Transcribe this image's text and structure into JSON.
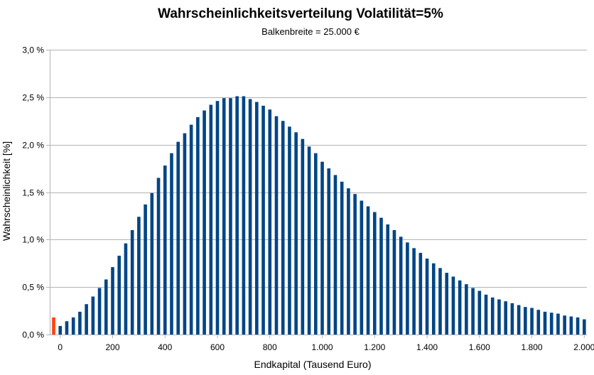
{
  "chart_data": {
    "type": "bar",
    "title": "Wahrscheinlichkeitsverteilung Volatilität=5%",
    "subtitle": "Balkenbreite = 25.000 €",
    "xlabel": "Endkapital (Tausend Euro)",
    "ylabel": "Wahrscheinlichkeit [%]",
    "x_unit": "Tausend Euro",
    "y_unit": "%",
    "bin_width": 25,
    "xlim": [
      -40,
      2010
    ],
    "ylim": [
      0,
      3.0
    ],
    "x_ticks": [
      0,
      200,
      400,
      600,
      800,
      1000,
      1200,
      1400,
      1600,
      1800,
      2000
    ],
    "x_tick_labels": [
      "0",
      "200",
      "400",
      "600",
      "800",
      "1.000",
      "1.200",
      "1.400",
      "1.600",
      "1.800",
      "2.000"
    ],
    "y_ticks": [
      0,
      0.5,
      1.0,
      1.5,
      2.0,
      2.5,
      3.0
    ],
    "y_tick_labels": [
      "0,0 %",
      "0,5 %",
      "1,0 %",
      "1,5 %",
      "2,0 %",
      "2,5 %",
      "3,0 %"
    ],
    "grid": true,
    "colors": {
      "main": "#004586",
      "highlight": "#ff420e"
    },
    "highlight_bar": {
      "x": -25,
      "value": 0.18,
      "note_color": "#ff420e"
    },
    "x": [
      -25,
      0,
      25,
      50,
      75,
      100,
      125,
      150,
      175,
      200,
      225,
      250,
      275,
      300,
      325,
      350,
      375,
      400,
      425,
      450,
      475,
      500,
      525,
      550,
      575,
      600,
      625,
      650,
      675,
      700,
      725,
      750,
      775,
      800,
      825,
      850,
      875,
      900,
      925,
      950,
      975,
      1000,
      1025,
      1050,
      1075,
      1100,
      1125,
      1150,
      1175,
      1200,
      1225,
      1250,
      1275,
      1300,
      1325,
      1350,
      1375,
      1400,
      1425,
      1450,
      1475,
      1500,
      1525,
      1550,
      1575,
      1600,
      1625,
      1650,
      1675,
      1700,
      1725,
      1750,
      1775,
      1800,
      1825,
      1850,
      1875,
      1900,
      1925,
      1950,
      1975,
      2000
    ],
    "values": [
      0.18,
      0.09,
      0.14,
      0.18,
      0.24,
      0.32,
      0.4,
      0.49,
      0.58,
      0.71,
      0.83,
      0.96,
      1.1,
      1.24,
      1.37,
      1.49,
      1.65,
      1.78,
      1.91,
      2.03,
      2.12,
      2.21,
      2.29,
      2.36,
      2.42,
      2.46,
      2.49,
      2.49,
      2.51,
      2.51,
      2.48,
      2.45,
      2.41,
      2.37,
      2.3,
      2.25,
      2.19,
      2.13,
      2.06,
      1.98,
      1.91,
      1.82,
      1.75,
      1.68,
      1.61,
      1.54,
      1.48,
      1.41,
      1.35,
      1.29,
      1.23,
      1.16,
      1.1,
      1.03,
      0.97,
      0.91,
      0.86,
      0.8,
      0.75,
      0.7,
      0.65,
      0.61,
      0.57,
      0.53,
      0.49,
      0.46,
      0.42,
      0.39,
      0.37,
      0.35,
      0.33,
      0.31,
      0.29,
      0.28,
      0.26,
      0.24,
      0.23,
      0.22,
      0.2,
      0.19,
      0.18,
      0.16
    ]
  }
}
